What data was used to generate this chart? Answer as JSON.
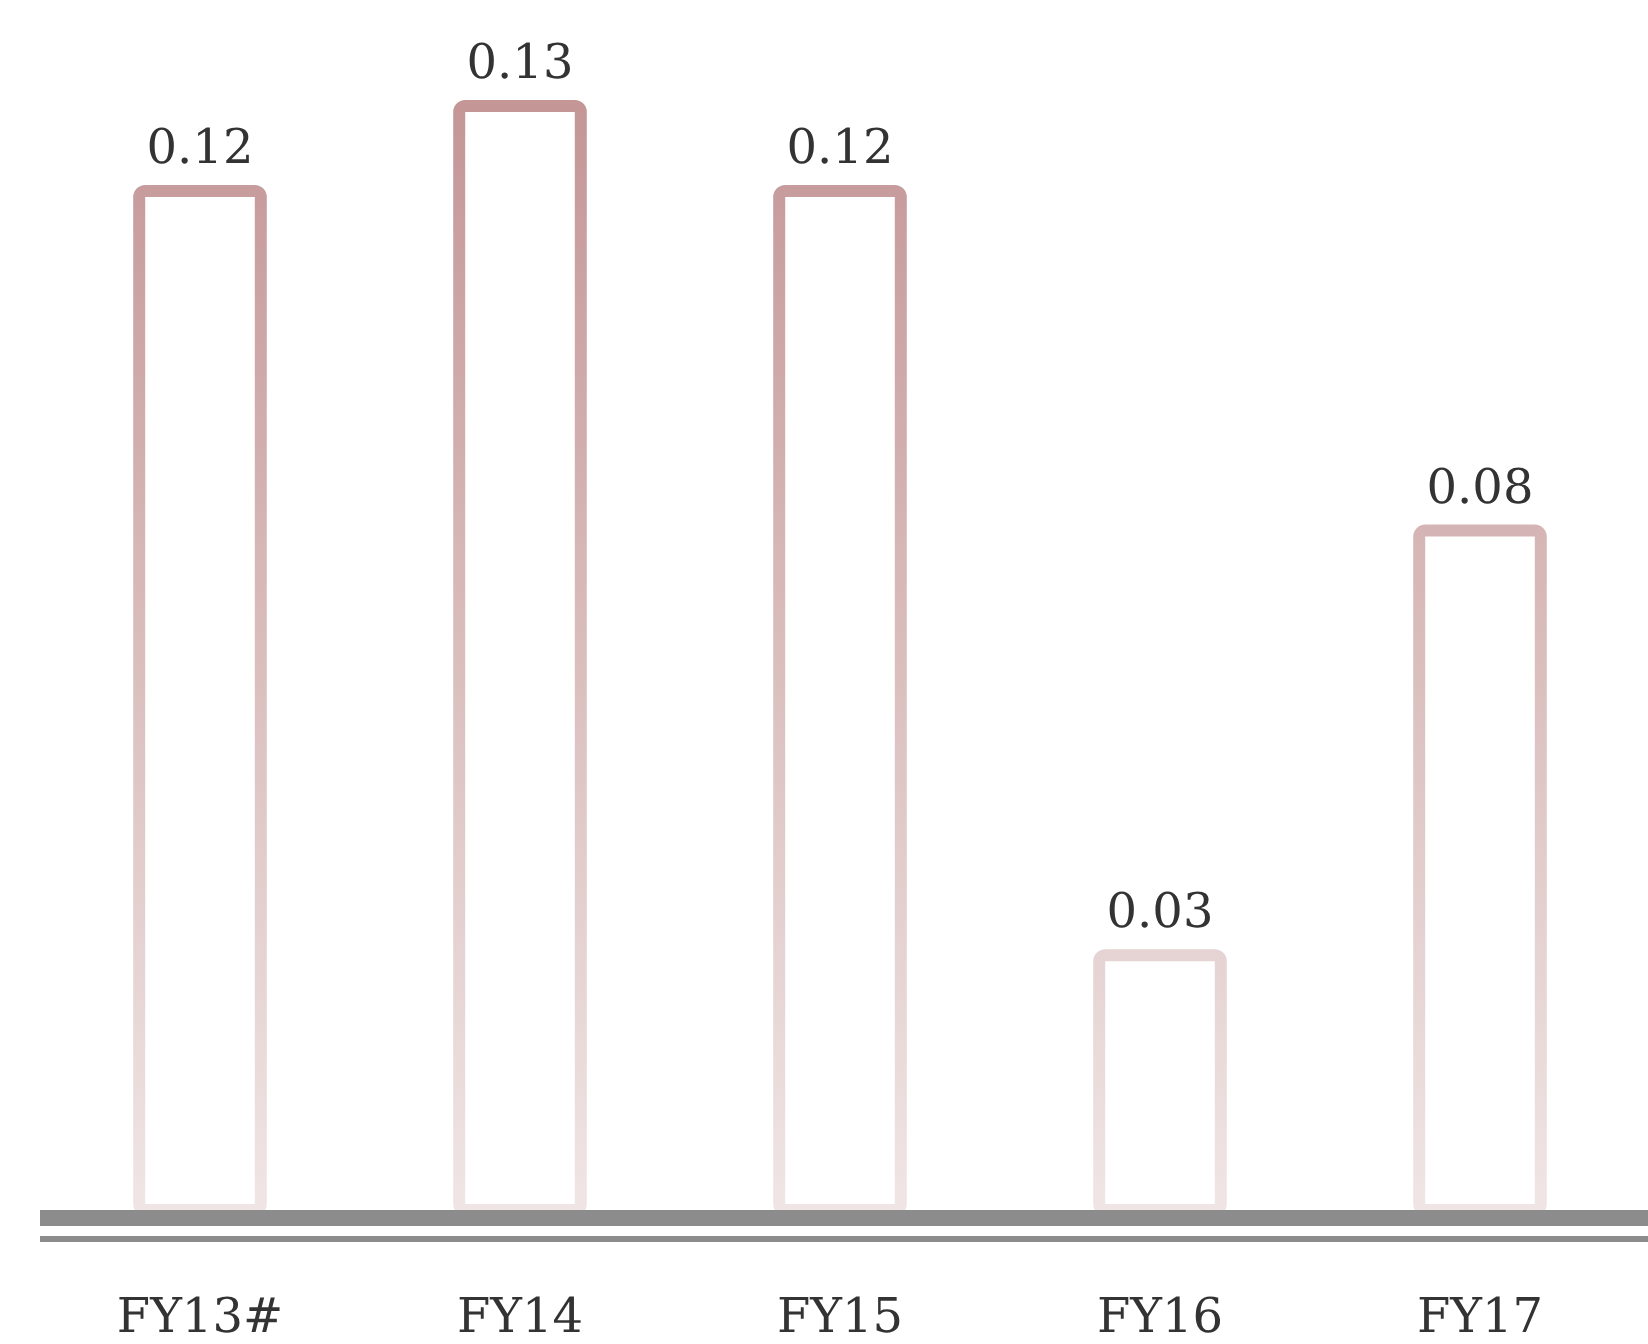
{
  "chart_data": {
    "type": "bar",
    "categories": [
      "FY13#",
      "FY14",
      "FY15",
      "FY16",
      "FY17"
    ],
    "values": [
      0.12,
      0.13,
      0.12,
      0.03,
      0.08
    ],
    "color": "#c49696",
    "data_labels": true
  }
}
